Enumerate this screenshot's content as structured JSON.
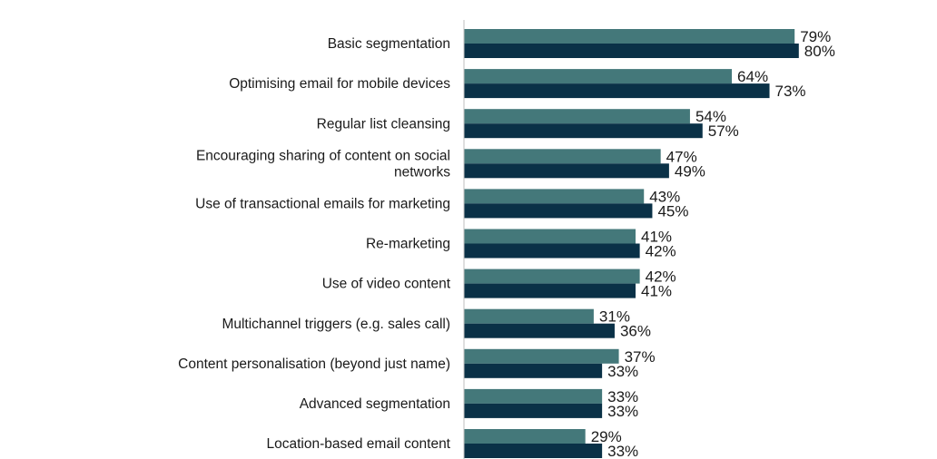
{
  "chart_data": {
    "type": "bar",
    "orientation": "horizontal",
    "categories": [
      [
        "Basic segmentation"
      ],
      [
        "Optimising email for mobile devices"
      ],
      [
        "Regular list cleansing"
      ],
      [
        "Encouraging sharing of content on social",
        "networks"
      ],
      [
        "Use of transactional emails for marketing"
      ],
      [
        "Re-marketing"
      ],
      [
        "Use of video content"
      ],
      [
        "Multichannel triggers (e.g. sales call)"
      ],
      [
        "Content personalisation (beyond just name)"
      ],
      [
        "Advanced segmentation"
      ],
      [
        "Location-based email content"
      ]
    ],
    "series": [
      {
        "color": "#44787a",
        "values": [
          79,
          64,
          54,
          47,
          43,
          41,
          42,
          31,
          37,
          33,
          29
        ],
        "labels": [
          "79%",
          "64%",
          "54%",
          "47%",
          "43%",
          "41%",
          "42%",
          "31%",
          "37%",
          "33%",
          "29%"
        ]
      },
      {
        "color": "#0a3147",
        "values": [
          80,
          73,
          57,
          49,
          45,
          42,
          41,
          36,
          33,
          33,
          33
        ],
        "labels": [
          "80%",
          "73%",
          "57%",
          "49%",
          "45%",
          "42%",
          "41%",
          "36%",
          "33%",
          "33%",
          "33%"
        ]
      }
    ],
    "xlim": [
      0,
      100
    ],
    "grid": false,
    "legend": "none",
    "axis_color": "#bfbfbf"
  }
}
